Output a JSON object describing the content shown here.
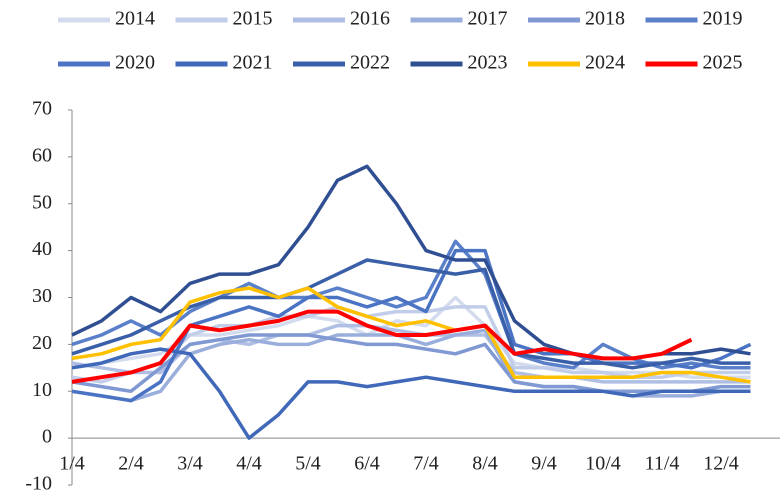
{
  "chart_data": {
    "type": "line",
    "categories": [
      "1/4",
      null,
      "2/4",
      null,
      "3/4",
      null,
      "4/4",
      null,
      "5/4",
      null,
      "6/4",
      null,
      "7/4",
      null,
      "8/4",
      null,
      "9/4",
      null,
      "10/4",
      null,
      "11/4",
      null,
      "12/4",
      null
    ],
    "ylim": [
      -10,
      70
    ],
    "yticks": [
      -10,
      0,
      10,
      20,
      30,
      40,
      50,
      60,
      70
    ],
    "series": [
      {
        "name": "2014",
        "color": "#d3dbee",
        "values": [
          15,
          16,
          17,
          18,
          22,
          22,
          23,
          24,
          26,
          25,
          22,
          25,
          24,
          30,
          24,
          16,
          15,
          15,
          14,
          14,
          14,
          13,
          13,
          13
        ]
      },
      {
        "name": "2015",
        "color": "#c1cde9",
        "values": [
          13,
          12,
          14,
          16,
          22,
          24,
          24,
          26,
          26,
          28,
          26,
          27,
          27,
          28,
          28,
          15,
          15,
          14,
          14,
          13,
          13,
          14,
          14,
          14
        ]
      },
      {
        "name": "2016",
        "color": "#afbee3",
        "values": [
          16,
          15,
          14,
          14,
          20,
          21,
          20,
          22,
          22,
          24,
          24,
          23,
          22,
          22,
          22,
          14,
          13,
          13,
          12,
          12,
          12,
          12,
          12,
          12
        ]
      },
      {
        "name": "2017",
        "color": "#9aaedc",
        "values": [
          10,
          9,
          8,
          10,
          18,
          20,
          21,
          20,
          20,
          22,
          22,
          22,
          20,
          22,
          23,
          12,
          11,
          11,
          10,
          9,
          9,
          9,
          10,
          10
        ]
      },
      {
        "name": "2018",
        "color": "#8099d3",
        "values": [
          12,
          11,
          10,
          15,
          20,
          21,
          22,
          22,
          22,
          21,
          20,
          20,
          19,
          18,
          20,
          12,
          11,
          11,
          10,
          10,
          10,
          10,
          11,
          11
        ]
      },
      {
        "name": "2019",
        "color": "#5b80ca",
        "values": [
          20,
          22,
          25,
          22,
          27,
          30,
          33,
          30,
          30,
          32,
          30,
          28,
          30,
          42,
          35,
          18,
          16,
          15,
          20,
          17,
          15,
          16,
          15,
          15
        ]
      },
      {
        "name": "2020",
        "color": "#4b73c4",
        "values": [
          10,
          9,
          8,
          12,
          24,
          26,
          28,
          26,
          30,
          30,
          28,
          30,
          27,
          40,
          40,
          20,
          18,
          18,
          16,
          16,
          16,
          15,
          17,
          20
        ]
      },
      {
        "name": "2021",
        "color": "#4068b9",
        "values": [
          15,
          16,
          18,
          19,
          18,
          10,
          0,
          5,
          12,
          12,
          11,
          12,
          13,
          12,
          11,
          10,
          10,
          10,
          10,
          9,
          10,
          10,
          10,
          10
        ]
      },
      {
        "name": "2022",
        "color": "#3a5fa9",
        "values": [
          18,
          20,
          22,
          25,
          28,
          30,
          30,
          30,
          32,
          35,
          38,
          37,
          36,
          35,
          36,
          18,
          17,
          16,
          16,
          15,
          16,
          17,
          16,
          16
        ]
      },
      {
        "name": "2023",
        "color": "#2f4f92",
        "values": [
          22,
          25,
          30,
          27,
          33,
          35,
          35,
          37,
          45,
          55,
          58,
          50,
          40,
          38,
          38,
          25,
          20,
          18,
          17,
          17,
          18,
          18,
          19,
          18
        ]
      },
      {
        "name": "2024",
        "color": "#ffc000",
        "values": [
          17,
          18,
          20,
          21,
          29,
          31,
          32,
          30,
          32,
          28,
          26,
          24,
          25,
          23,
          24,
          13,
          13,
          13,
          13,
          13,
          14,
          14,
          13,
          12
        ]
      },
      {
        "name": "2025",
        "color": "#ff0000",
        "values": [
          12,
          13,
          14,
          16,
          24,
          23,
          24,
          25,
          27,
          27,
          24,
          22,
          22,
          23,
          24,
          18,
          19,
          18,
          17,
          17,
          18,
          21,
          null,
          null
        ]
      }
    ]
  }
}
